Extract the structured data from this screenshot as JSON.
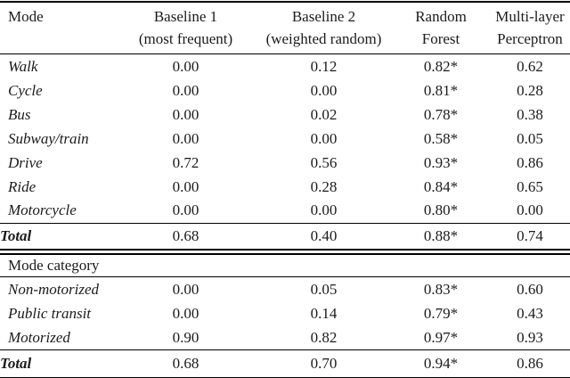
{
  "table": {
    "columns": [
      {
        "label": "Mode",
        "sublabel": ""
      },
      {
        "label": "Baseline 1",
        "sublabel": "(most frequent)"
      },
      {
        "label": "Baseline 2",
        "sublabel": "(weighted random)"
      },
      {
        "label": "Random",
        "sublabel": "Forest"
      },
      {
        "label": "Multi-layer",
        "sublabel": "Perceptron"
      }
    ],
    "mode_rows": [
      {
        "label": "Walk",
        "values": [
          "0.00",
          "0.12",
          "0.82*",
          "0.62"
        ]
      },
      {
        "label": "Cycle",
        "values": [
          "0.00",
          "0.00",
          "0.81*",
          "0.28"
        ]
      },
      {
        "label": "Bus",
        "values": [
          "0.00",
          "0.02",
          "0.78*",
          "0.38"
        ]
      },
      {
        "label": "Subway/train",
        "values": [
          "0.00",
          "0.00",
          "0.58*",
          "0.05"
        ]
      },
      {
        "label": "Drive",
        "values": [
          "0.72",
          "0.56",
          "0.93*",
          "0.86"
        ]
      },
      {
        "label": "Ride",
        "values": [
          "0.00",
          "0.28",
          "0.84*",
          "0.65"
        ]
      },
      {
        "label": "Motorcycle",
        "values": [
          "0.00",
          "0.00",
          "0.80*",
          "0.00"
        ]
      }
    ],
    "mode_total": {
      "label": "Total",
      "values": [
        "0.68",
        "0.40",
        "0.88*",
        "0.74"
      ]
    },
    "category_header": "Mode category",
    "category_rows": [
      {
        "label": "Non-motorized",
        "values": [
          "0.00",
          "0.05",
          "0.83*",
          "0.60"
        ]
      },
      {
        "label": "Public transit",
        "values": [
          "0.00",
          "0.14",
          "0.79*",
          "0.43"
        ]
      },
      {
        "label": "Motorized",
        "values": [
          "0.90",
          "0.82",
          "0.97*",
          "0.93"
        ]
      }
    ],
    "category_total": {
      "label": "Total",
      "values": [
        "0.68",
        "0.70",
        "0.94*",
        "0.86"
      ]
    },
    "text_color": "#1b1b1b"
  }
}
